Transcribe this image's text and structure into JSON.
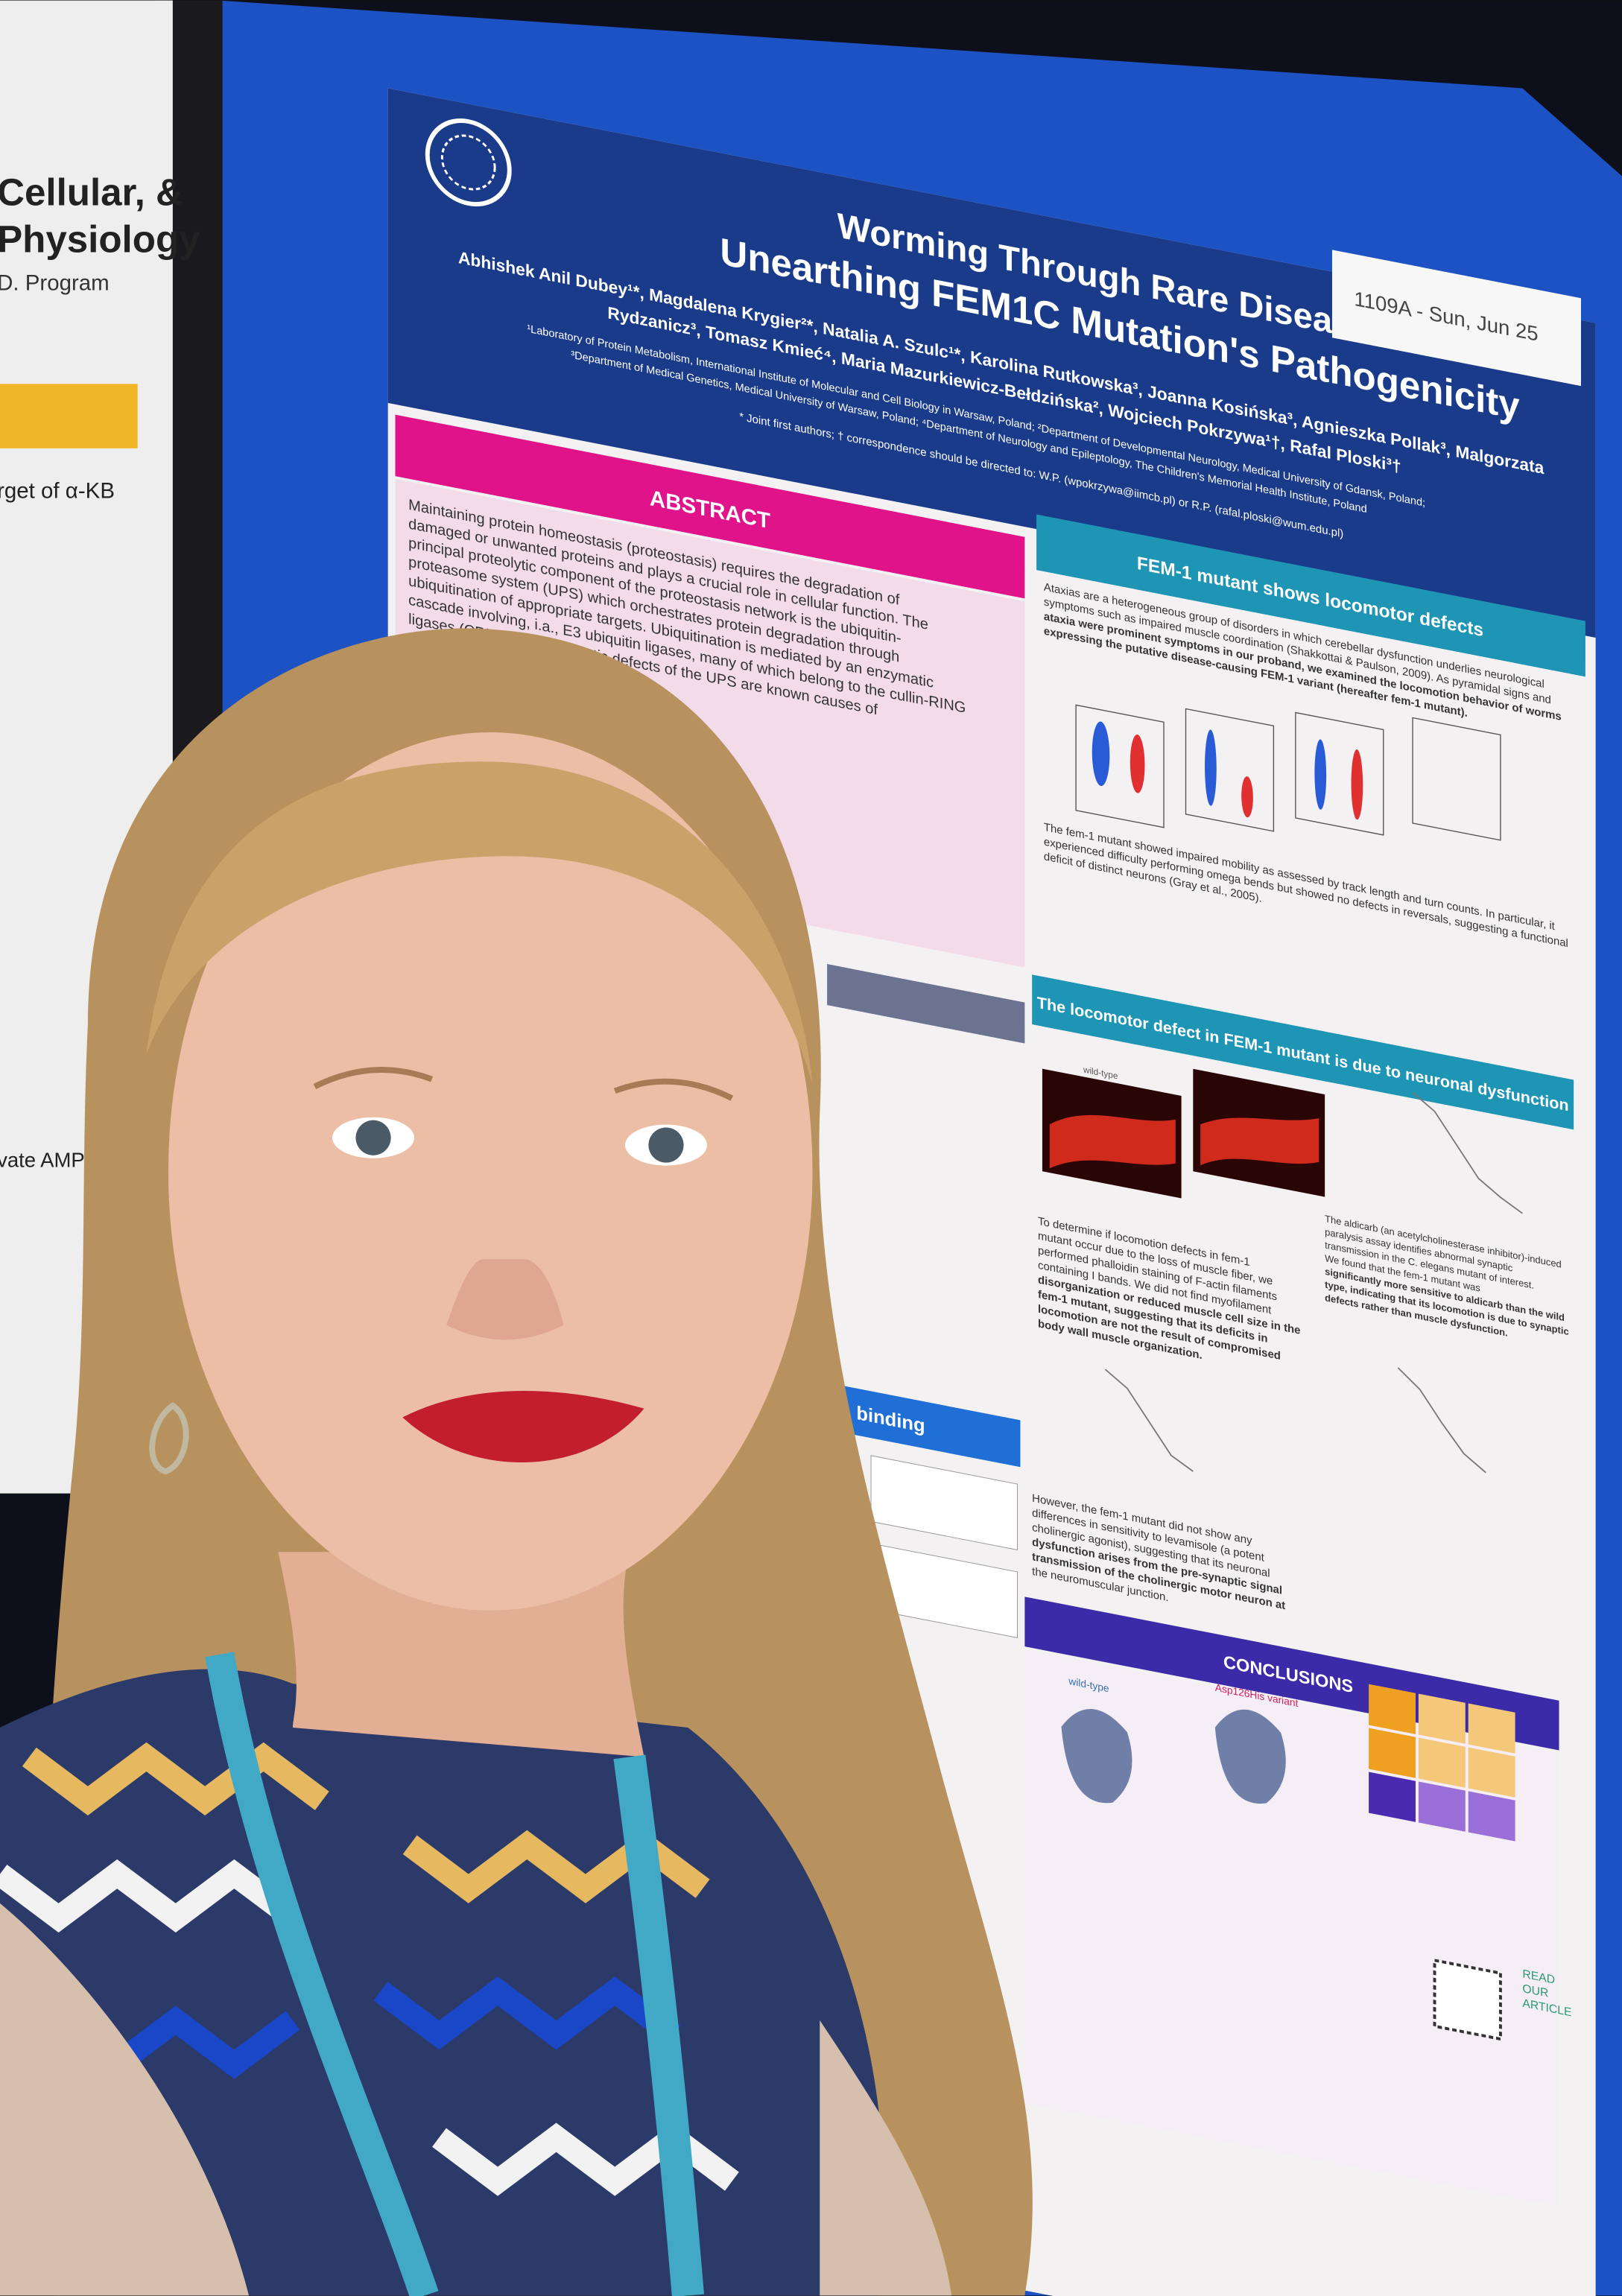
{
  "poster": {
    "tag": "1109A - Sun, Jun 25",
    "title": [
      "Worming Through Rare Diseases:",
      "Unearthing FEM1C Mutation's Pathogenicity"
    ],
    "authors": [
      "Abhishek Anil Dubey¹*, Magdalena Krygier²*, Natalia A. Szulc¹*, Karolina Rutkowska³, Joanna Kosińska³, Agnieszka Pollak³, Malgorzata",
      "Rydzanicz³, Tomasz Kmieć⁴, Maria Mazurkiewicz-Bełdzińska², Wojciech Pokrzywa¹†, Rafal Ploski³†"
    ],
    "affiliations": [
      "¹Laboratory of Protein Metabolism, International Institute of Molecular and Cell Biology in Warsaw, Poland; ²Department of Developmental Neurology, Medical University of Gdansk, Poland;",
      "³Department of Medical Genetics, Medical University of Warsaw, Poland; ⁴Department of Neurology and Epileptology, The Children's Memorial Health Institute, Poland"
    ],
    "correspondence": "* Joint first authors; † correspondence should be directed to: W.P. (wpokrzywa@iimcb.pl) or R.P. (rafal.ploski@wum.edu.pl)",
    "abstract_heading": "ABSTRACT",
    "abstract": [
      "Maintaining protein homeostasis (proteostasis) requires the degradation of",
      "damaged or unwanted proteins and plays a crucial role in cellular function. The",
      "principal proteolytic component of the proteostasis network is the ubiquitin-",
      "proteasome system (UPS) which orchestrates protein degradation through",
      "ubiquitination of appropriate targets. Ubiquitination is mediated by an enzymatic",
      "cascade involving, i.a., E3 ubiquitin ligases, many of which belong to the cullin-RING",
      "ligases (CRLs) family. Genetic defects of the UPS are known causes of"
    ],
    "section1": "FEM-1 mutant shows locomotor defects",
    "section1_text": [
      "Ataxias are a heterogeneous group of disorders in which cerebellar dysfunction underlies neurological",
      "symptoms such as impaired muscle coordination (Shakkottai & Paulson, 2009). As pyramidal signs and",
      "ataxia were prominent symptoms in our proband, we examined the locomotion behavior of worms",
      "expressing the putative disease-causing FEM-1 variant (hereafter fem-1 mutant)."
    ],
    "section1_caption": [
      "The fem-1 mutant showed impaired mobility as assessed by track length and turn counts. In particular, it",
      "experienced difficulty performing omega bends but showed no defects in reversals, suggesting a functional",
      "deficit of distinct neurons (Gray et al., 2005)."
    ],
    "section2": "The locomotor defect in FEM-1 mutant is due to neuronal dysfunction",
    "section2_text": [
      "To determine if locomotion defects in fem-1",
      "mutant occur due to the loss of muscle fiber, we",
      "performed phalloidin staining of F-actin filaments",
      "containing I bands. We did not find myofilament",
      "disorganization or reduced muscle cell size in the",
      "fem-1 mutant, suggesting that its deficits in",
      "locomotion are not the result of compromised",
      "body wall muscle organization."
    ],
    "section2_text_right": [
      "The aldicarb (an acetylcholinesterase inhibitor)-induced",
      "paralysis assay identifies abnormal synaptic",
      "transmission in the C. elegans mutant of interest.",
      "We found that the fem-1 mutant was",
      "significantly more sensitive to aldicarb than the wild",
      "type, indicating that its locomotion is due to synaptic",
      "defects rather than muscle dysfunction."
    ],
    "section3_text": [
      "However, the fem-1 mutant did not show any",
      "differences in sensitivity to levamisole (a potent",
      "cholinergic agonist), suggesting that its neuronal",
      "dysfunction arises from the pre-synaptic signal",
      "transmission of the cholinergic motor neuron at",
      "the neuromuscular junction."
    ],
    "binding_heading": "binding",
    "conclusions_heading": "CONCLUSIONS",
    "wild_type": "wild-type",
    "variant": "Asp126His variant",
    "read": [
      "READ",
      "OUR",
      "ARTICLE"
    ]
  },
  "left_poster": [
    "Cellular, &",
    "Physiology",
    "D. Program",
    "rget of α-KB",
    "vate AMPK"
  ]
}
